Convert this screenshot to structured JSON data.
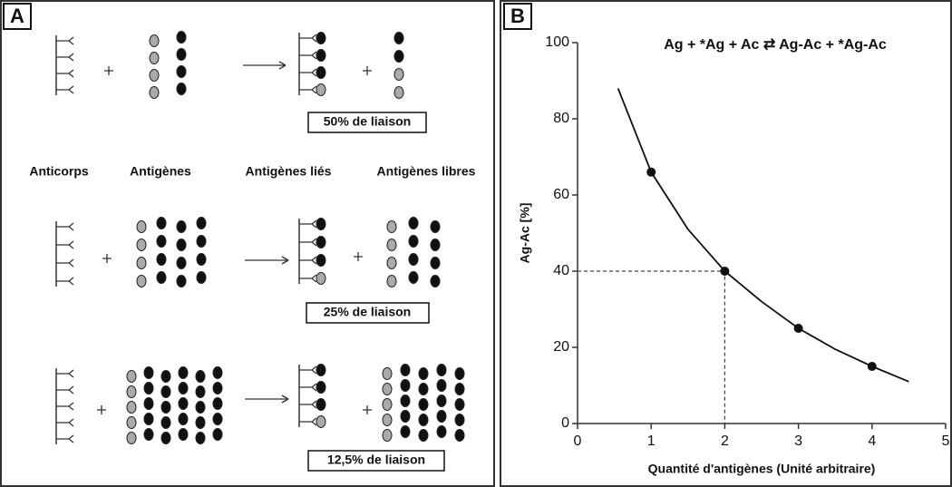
{
  "panel_a": {
    "label": "A",
    "row_labels": [
      "Anticorps",
      "Antigènes",
      "Antigènes liés",
      "Antigènes libres"
    ],
    "results": [
      "50% de liaison",
      "25% de liaison",
      "12,5% de liaison"
    ]
  },
  "chart_data": {
    "type": "scatter",
    "label": "B",
    "title": "Ag + *Ag + Ac ⇄ Ag-Ac + *Ag-Ac",
    "x_label": "Quantité d'antigènes (Unité arbitraire)",
    "y_label": "Ag-Ac [%]",
    "x": [
      1,
      2,
      3,
      4
    ],
    "values": [
      66,
      40,
      25,
      15
    ],
    "curve": {
      "x": [
        0.55,
        1,
        1.5,
        2,
        2.5,
        3,
        3.5,
        4,
        4.5
      ],
      "values": [
        88,
        66,
        51,
        40,
        32,
        25,
        19.5,
        15,
        11
      ]
    },
    "guide": {
      "x": 2,
      "y": 40
    },
    "color": "#111111",
    "xlim": [
      0,
      5
    ],
    "xticks": [
      0,
      1,
      2,
      3,
      4,
      5
    ],
    "ylim": [
      0,
      100
    ],
    "yticks": [
      0,
      20,
      40,
      60,
      80,
      100
    ]
  }
}
